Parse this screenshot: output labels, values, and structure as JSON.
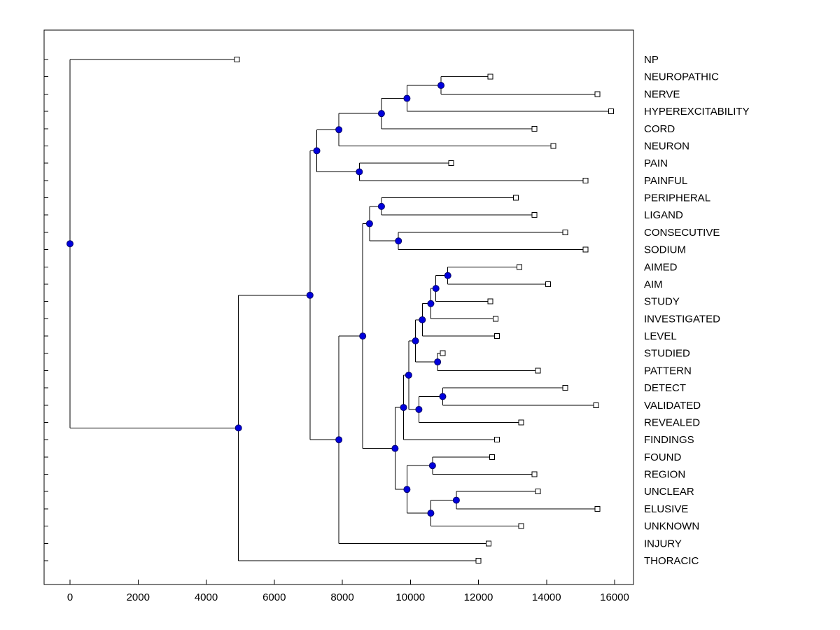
{
  "figure": {
    "kind": "hierarchical-cluster-dendrogram",
    "orientation": "left-to-right"
  },
  "colors": {
    "background": "#ffffff",
    "line": "#000000",
    "text": "#000000",
    "branch_node_fill": "#0000dd",
    "branch_node_edge": "#000066",
    "leaf_marker_fill": "#ffffff",
    "leaf_marker_edge": "#000000"
  },
  "chart_data": {
    "type": "dendrogram",
    "title": "",
    "xlabel": "",
    "ylabel": "",
    "grid": false,
    "legend": null,
    "x_axis": {
      "ticks": [
        0,
        2000,
        4000,
        6000,
        8000,
        10000,
        12000,
        14000,
        16000
      ],
      "min": -760,
      "max": 16560
    },
    "leaf_labels": [
      "NP",
      "NEUROPATHIC",
      "NERVE",
      "HYPEREXCITABILITY",
      "CORD",
      "NEURON",
      "PAIN",
      "PAINFUL",
      "PERIPHERAL",
      "LIGAND",
      "CONSECUTIVE",
      "SODIUM",
      "AIMED",
      "AIM",
      "STUDY",
      "INVESTIGATED",
      "LEVEL",
      "STUDIED",
      "PATTERN",
      "DETECT",
      "VALIDATED",
      "REVEALED",
      "FINDINGS",
      "FOUND",
      "REGION",
      "UNCLEAR",
      "ELUSIVE",
      "UNKNOWN",
      "INJURY",
      "THORACIC"
    ],
    "tree": {
      "dist": 0,
      "children": [
        {
          "name": "NP",
          "dist": 4900
        },
        {
          "dist": 4950,
          "children": [
            {
              "dist": 7050,
              "children": [
                {
                  "dist": 7250,
                  "children": [
                    {
                      "dist": 7900,
                      "children": [
                        {
                          "dist": 9150,
                          "children": [
                            {
                              "dist": 9900,
                              "children": [
                                {
                                  "dist": 10900,
                                  "children": [
                                    {
                                      "name": "NEUROPATHIC",
                                      "dist": 12350
                                    },
                                    {
                                      "name": "NERVE",
                                      "dist": 15500
                                    }
                                  ]
                                },
                                {
                                  "name": "HYPEREXCITABILITY",
                                  "dist": 15900
                                }
                              ]
                            },
                            {
                              "name": "CORD",
                              "dist": 13650
                            }
                          ]
                        },
                        {
                          "name": "NEURON",
                          "dist": 14200
                        }
                      ]
                    },
                    {
                      "dist": 8500,
                      "children": [
                        {
                          "name": "PAIN",
                          "dist": 11200
                        },
                        {
                          "name": "PAINFUL",
                          "dist": 15150
                        }
                      ]
                    }
                  ]
                },
                {
                  "dist": 7900,
                  "children": [
                    {
                      "dist": 8600,
                      "children": [
                        {
                          "dist": 8800,
                          "children": [
                            {
                              "dist": 9150,
                              "children": [
                                {
                                  "name": "PERIPHERAL",
                                  "dist": 13100
                                },
                                {
                                  "name": "LIGAND",
                                  "dist": 13650
                                }
                              ]
                            },
                            {
                              "dist": 9650,
                              "children": [
                                {
                                  "name": "CONSECUTIVE",
                                  "dist": 14550
                                },
                                {
                                  "name": "SODIUM",
                                  "dist": 15150
                                }
                              ]
                            }
                          ]
                        },
                        {
                          "dist": 9550,
                          "children": [
                            {
                              "dist": 9800,
                              "children": [
                                {
                                  "dist": 9950,
                                  "children": [
                                    {
                                      "dist": 10150,
                                      "children": [
                                        {
                                          "dist": 10350,
                                          "children": [
                                            {
                                              "dist": 10600,
                                              "children": [
                                                {
                                                  "dist": 10750,
                                                  "children": [
                                                    {
                                                      "dist": 11100,
                                                      "children": [
                                                        {
                                                          "name": "AIMED",
                                                          "dist": 13200
                                                        },
                                                        {
                                                          "name": "AIM",
                                                          "dist": 14050
                                                        }
                                                      ]
                                                    },
                                                    {
                                                      "name": "STUDY",
                                                      "dist": 12350
                                                    }
                                                  ]
                                                },
                                                {
                                                  "name": "INVESTIGATED",
                                                  "dist": 12500
                                                }
                                              ]
                                            },
                                            {
                                              "name": "LEVEL",
                                              "dist": 12550
                                            }
                                          ]
                                        },
                                        {
                                          "dist": 10800,
                                          "children": [
                                            {
                                              "name": "STUDIED",
                                              "dist": 10950
                                            },
                                            {
                                              "name": "PATTERN",
                                              "dist": 13750
                                            }
                                          ]
                                        }
                                      ]
                                    },
                                    {
                                      "dist": 10250,
                                      "children": [
                                        {
                                          "dist": 10950,
                                          "children": [
                                            {
                                              "name": "DETECT",
                                              "dist": 14550
                                            },
                                            {
                                              "name": "VALIDATED",
                                              "dist": 15450
                                            }
                                          ]
                                        },
                                        {
                                          "name": "REVEALED",
                                          "dist": 13250
                                        }
                                      ]
                                    }
                                  ]
                                },
                                {
                                  "name": "FINDINGS",
                                  "dist": 12550
                                }
                              ]
                            },
                            {
                              "dist": 9900,
                              "children": [
                                {
                                  "dist": 10650,
                                  "children": [
                                    {
                                      "name": "FOUND",
                                      "dist": 12400
                                    },
                                    {
                                      "name": "REGION",
                                      "dist": 13650
                                    }
                                  ]
                                },
                                {
                                  "dist": 10600,
                                  "children": [
                                    {
                                      "dist": 11350,
                                      "children": [
                                        {
                                          "name": "UNCLEAR",
                                          "dist": 13750
                                        },
                                        {
                                          "name": "ELUSIVE",
                                          "dist": 15500
                                        }
                                      ]
                                    },
                                    {
                                      "name": "UNKNOWN",
                                      "dist": 13250
                                    }
                                  ]
                                }
                              ]
                            }
                          ]
                        }
                      ]
                    },
                    {
                      "name": "INJURY",
                      "dist": 12300
                    }
                  ]
                }
              ]
            },
            {
              "name": "THORACIC",
              "dist": 12000
            }
          ]
        }
      ]
    }
  }
}
